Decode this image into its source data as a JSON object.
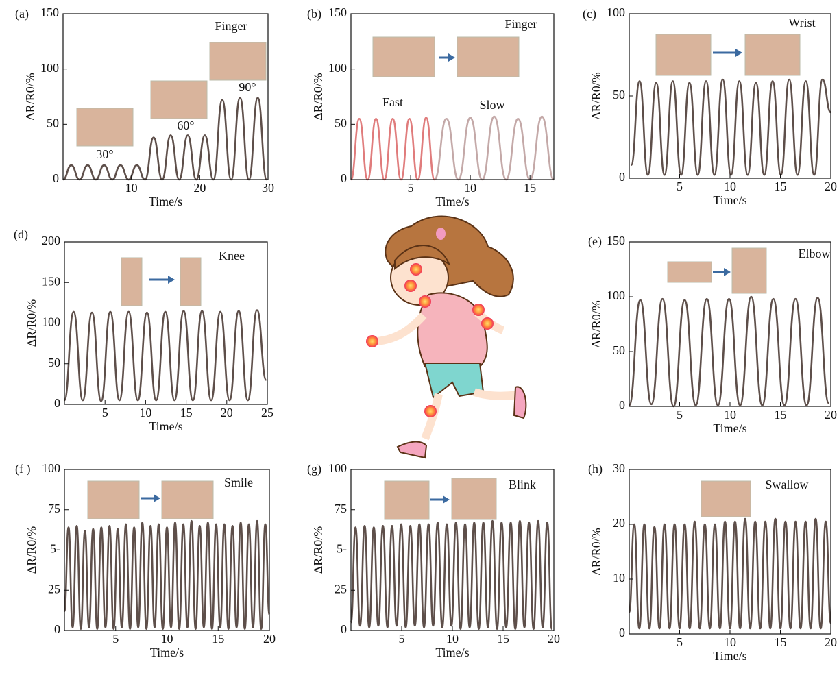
{
  "chart_data": [
    {
      "type": "line",
      "panel": "(a)",
      "xlabel": "Time/s",
      "ylabel": "ΔR/R0/%",
      "annotations": [
        "Finger",
        "30°",
        "60°",
        "90°"
      ],
      "xlim": [
        0,
        30
      ],
      "xticks": [
        10,
        20,
        30
      ],
      "ylim": [
        0,
        150
      ],
      "yticks": [
        0,
        50,
        100,
        150
      ],
      "x": [
        0,
        1.2,
        2.4,
        3.6,
        4.8,
        6,
        7.2,
        8.4,
        9.6,
        10.8,
        12,
        13.25,
        14.5,
        15.75,
        17,
        18.25,
        19.5,
        20.75,
        22,
        23.3,
        24.6,
        25.9,
        27.2,
        28.5,
        29.8
      ],
      "series": [
        {
          "color": "#5e4f4a",
          "values": [
            0,
            13,
            0,
            13,
            0,
            13,
            0,
            13,
            0,
            13,
            0,
            38,
            0,
            40,
            0,
            40,
            0,
            40,
            0,
            72,
            0,
            74,
            0,
            74,
            0
          ]
        }
      ]
    },
    {
      "type": "line",
      "panel": "(b)",
      "xlabel": "Time/s",
      "ylabel": "ΔR/R0/%",
      "annotations": [
        "Finger"
      ],
      "xlim": [
        0,
        17
      ],
      "xticks": [
        5,
        10,
        15
      ],
      "ylim": [
        0,
        150
      ],
      "yticks": [
        0,
        50,
        100,
        150
      ],
      "x": [
        0,
        0.7,
        1.4,
        2.1,
        2.8,
        3.5,
        4.2,
        4.9,
        5.6,
        6.3,
        7,
        8,
        9,
        10,
        11,
        12,
        13,
        14,
        15,
        16,
        17
      ],
      "series": [
        {
          "name": "Fast",
          "color": "#e07c7c",
          "values": [
            0,
            55,
            0,
            55,
            0,
            55,
            0,
            55,
            0,
            56,
            0,
            null,
            null,
            null,
            null,
            null,
            null,
            null,
            null,
            null,
            null
          ]
        },
        {
          "name": "Slow",
          "color": "#c4a9a8",
          "values": [
            null,
            null,
            null,
            null,
            null,
            null,
            null,
            null,
            null,
            null,
            0,
            55,
            0,
            56,
            0,
            57,
            0,
            55,
            0,
            57,
            0
          ]
        }
      ]
    },
    {
      "type": "line",
      "panel": "(c)",
      "xlabel": "Time/s",
      "ylabel": "ΔR/R0/%",
      "annotations": [
        "Wrist"
      ],
      "xlim": [
        0,
        20
      ],
      "xticks": [
        5,
        10,
        15,
        20
      ],
      "ylim": [
        0,
        100
      ],
      "yticks": [
        0,
        50,
        100
      ],
      "x": [
        0.2,
        1.025,
        1.85,
        2.675,
        3.5,
        4.325,
        5.15,
        5.975,
        6.8,
        7.625,
        8.45,
        9.275,
        10.1,
        10.925,
        11.75,
        12.575,
        13.4,
        14.225,
        15.05,
        15.875,
        16.7,
        17.525,
        18.35,
        19.175,
        20
      ],
      "series": [
        {
          "color": "#5e4f4a",
          "values": [
            8,
            59,
            2,
            58,
            2,
            59,
            2,
            58,
            2,
            59,
            2,
            60,
            2,
            59,
            2,
            58,
            2,
            59,
            2,
            60,
            2,
            59,
            2,
            60,
            40
          ]
        }
      ]
    },
    {
      "type": "line",
      "panel": "(d)",
      "xlabel": "Time/s",
      "ylabel": "ΔR/R0/%",
      "annotations": [
        "Knee"
      ],
      "xlim": [
        0,
        25
      ],
      "xticks": [
        5,
        10,
        15,
        20,
        25
      ],
      "ylim": [
        0,
        200
      ],
      "yticks": [
        0,
        50,
        100,
        150,
        200
      ],
      "x": [
        0,
        1.13,
        2.26,
        3.39,
        4.52,
        5.65,
        6.78,
        7.91,
        9.04,
        10.17,
        11.3,
        12.43,
        13.56,
        14.69,
        15.82,
        16.95,
        18.08,
        19.21,
        20.34,
        21.47,
        22.6,
        23.73,
        24.86
      ],
      "series": [
        {
          "color": "#5e4f4a",
          "values": [
            5,
            114,
            5,
            113,
            4,
            114,
            5,
            114,
            5,
            113,
            5,
            114,
            5,
            115,
            5,
            115,
            5,
            114,
            5,
            115,
            5,
            116,
            30
          ]
        }
      ]
    },
    {
      "type": "line",
      "panel": "(e)",
      "xlabel": "Time/s",
      "ylabel": "ΔR/R0/%",
      "annotations": [
        "Elbow"
      ],
      "xlim": [
        0,
        20
      ],
      "xticks": [
        5,
        10,
        15,
        20
      ],
      "ylim": [
        0,
        150
      ],
      "yticks": [
        0,
        50,
        100,
        150
      ],
      "x": [
        0,
        1.1,
        2.2,
        3.3,
        4.4,
        5.5,
        6.6,
        7.7,
        8.8,
        9.9,
        11,
        12.1,
        13.2,
        14.3,
        15.4,
        16.5,
        17.6,
        18.7,
        19.8
      ],
      "series": [
        {
          "color": "#5e4f4a",
          "values": [
            1,
            97,
            2,
            98,
            0,
            97,
            1,
            98,
            1,
            98,
            1,
            100,
            1,
            98,
            1,
            98,
            1,
            99,
            3
          ]
        }
      ]
    },
    {
      "type": "line",
      "panel": "(f )",
      "xlabel": "Time/s",
      "ylabel": "ΔR/R0/%",
      "annotations": [
        "Smile"
      ],
      "xlim": [
        0,
        20
      ],
      "xticks": [
        5,
        10,
        15,
        20
      ],
      "ylim": [
        0,
        100
      ],
      "yticks": [
        0,
        25,
        {
          "value": 50,
          "label": "5-"
        },
        75,
        100
      ],
      "x": [
        0,
        0.4,
        0.8,
        1.2,
        1.6,
        2,
        2.4,
        2.8,
        3.2,
        3.6,
        4,
        4.4,
        4.8,
        5.2,
        5.6,
        6,
        6.4,
        6.8,
        7.2,
        7.6,
        8,
        8.4,
        8.8,
        9.2,
        9.6,
        10,
        10.4,
        10.8,
        11.2,
        11.6,
        12,
        12.4,
        12.8,
        13.2,
        13.6,
        14,
        14.4,
        14.8,
        15.2,
        15.6,
        16,
        16.4,
        16.8,
        17.2,
        17.6,
        18,
        18.4,
        18.8,
        19.2,
        19.6,
        20
      ],
      "series": [
        {
          "color": "#5e4f4a",
          "values": [
            12,
            64,
            2,
            65,
            1,
            62,
            2,
            63,
            1,
            64,
            2,
            65,
            1,
            63,
            2,
            66,
            1,
            64,
            2,
            67,
            1,
            65,
            2,
            66,
            1,
            64,
            2,
            67,
            1,
            66,
            2,
            68,
            1,
            65,
            2,
            67,
            1,
            66,
            2,
            66,
            1,
            65,
            2,
            67,
            1,
            66,
            2,
            68,
            1,
            66,
            10
          ]
        }
      ]
    },
    {
      "type": "line",
      "panel": "(g)",
      "xlabel": "Time/s",
      "ylabel": "ΔR/R0/%",
      "annotations": [
        "Blink"
      ],
      "xlim": [
        0,
        20
      ],
      "xticks": [
        5,
        10,
        15,
        20
      ],
      "ylim": [
        0,
        100
      ],
      "yticks": [
        0,
        25,
        {
          "value": 50,
          "label": "5-"
        },
        75,
        100
      ],
      "x": [
        0,
        0.45,
        0.9,
        1.35,
        1.8,
        2.25,
        2.7,
        3.15,
        3.6,
        4.05,
        4.5,
        4.95,
        5.4,
        5.85,
        6.3,
        6.75,
        7.2,
        7.65,
        8.1,
        8.55,
        9,
        9.45,
        9.9,
        10.35,
        10.8,
        11.25,
        11.7,
        12.15,
        12.6,
        13.05,
        13.5,
        13.95,
        14.4,
        14.85,
        15.3,
        15.75,
        16.2,
        16.65,
        17.1,
        17.55,
        18,
        18.45,
        18.9,
        19.35,
        19.8
      ],
      "series": [
        {
          "color": "#5e4f4a",
          "values": [
            5,
            64,
            3,
            65,
            2,
            64,
            3,
            65,
            2,
            65,
            3,
            66,
            2,
            65,
            3,
            66,
            2,
            66,
            3,
            67,
            2,
            66,
            3,
            67,
            1,
            66,
            2,
            67,
            1,
            67,
            2,
            68,
            1,
            67,
            2,
            67,
            1,
            68,
            2,
            67,
            1,
            68,
            2,
            67,
            1
          ]
        }
      ]
    },
    {
      "type": "line",
      "panel": "(h)",
      "xlabel": "Time/s",
      "ylabel": "ΔR/R0/%",
      "annotations": [
        "Swallow"
      ],
      "xlim": [
        0,
        20
      ],
      "xticks": [
        5,
        10,
        15,
        20
      ],
      "ylim": [
        0,
        30
      ],
      "yticks": [
        0,
        10,
        20,
        30
      ],
      "x": [
        0,
        0.5,
        1,
        1.5,
        2,
        2.5,
        3,
        3.5,
        4,
        4.5,
        5,
        5.5,
        6,
        6.5,
        7,
        7.5,
        8,
        8.5,
        9,
        9.5,
        10,
        10.5,
        11,
        11.5,
        12,
        12.5,
        13,
        13.5,
        14,
        14.5,
        15,
        15.5,
        16,
        16.5,
        17,
        17.5,
        18,
        18.5,
        19,
        19.5,
        20
      ],
      "series": [
        {
          "color": "#5e4f4a",
          "values": [
            4,
            20,
            1,
            20,
            1,
            19.5,
            1,
            20,
            1,
            20,
            1,
            20,
            1,
            20.5,
            1,
            20,
            1,
            20,
            1,
            20.5,
            1,
            20.5,
            1,
            21,
            1,
            20.5,
            1,
            20.5,
            1,
            21,
            1,
            20.5,
            1,
            20.5,
            1,
            20.5,
            1,
            21,
            1,
            20.5,
            2
          ]
        }
      ]
    }
  ]
}
